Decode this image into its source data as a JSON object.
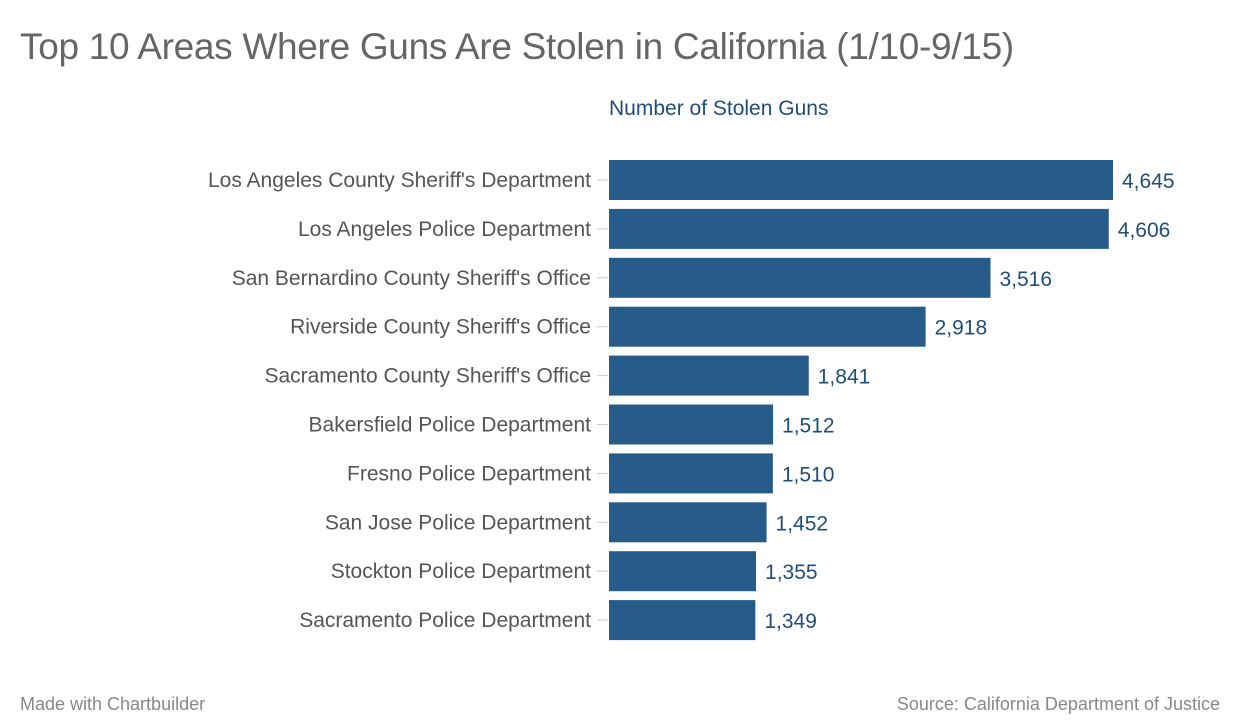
{
  "chart_data": {
    "type": "bar",
    "orientation": "horizontal",
    "title": "Top 10 Areas Where Guns Are Stolen in California (1/10-9/15)",
    "xlabel": "Number of Stolen Guns",
    "categories": [
      "Los Angeles County Sheriff's Department",
      "Los Angeles Police Department",
      "San Bernardino County Sheriff's Office",
      "Riverside County Sheriff's Office",
      "Sacramento County Sheriff's Office",
      "Bakersfield Police Department",
      "Fresno Police Department",
      "San Jose Police Department",
      "Stockton Police Department",
      "Sacramento Police Department"
    ],
    "values": [
      4645,
      4606,
      3516,
      2918,
      1841,
      1512,
      1510,
      1452,
      1355,
      1349
    ],
    "value_labels": [
      "4,645",
      "4,606",
      "3,516",
      "2,918",
      "1,841",
      "1,512",
      "1,510",
      "1,452",
      "1,355",
      "1,349"
    ],
    "xlim": [
      0,
      4645
    ],
    "grid": false,
    "bar_color": "#265b8a",
    "label_color": "#555555",
    "value_label_color": "#1f4e79"
  },
  "footer": {
    "made_with": "Made with Chartbuilder",
    "source": "Source: California Department of Justice"
  }
}
